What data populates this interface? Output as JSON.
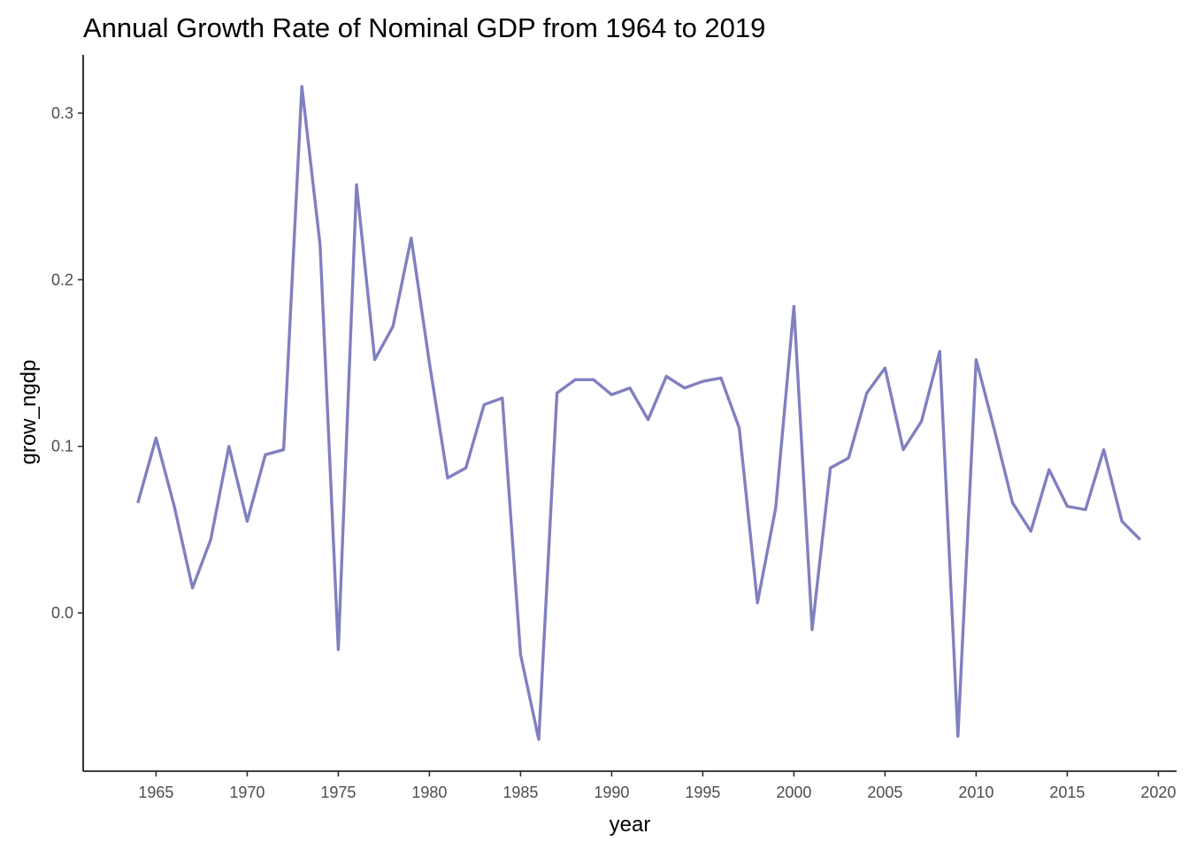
{
  "chart_data": {
    "type": "line",
    "title": "Annual Growth Rate of Nominal GDP from 1964 to 2019",
    "xlabel": "year",
    "ylabel": "grow_ngdp",
    "line_color": "#8080c0",
    "grid": false,
    "xlim": [
      1961,
      2021
    ],
    "ylim": [
      -0.095,
      0.335
    ],
    "x_ticks": [
      1965,
      1970,
      1975,
      1980,
      1985,
      1990,
      1995,
      2000,
      2005,
      2010,
      2015,
      2020
    ],
    "x_tick_labels": [
      "1965",
      "1970",
      "1975",
      "1980",
      "1985",
      "1990",
      "1995",
      "2000",
      "2005",
      "2010",
      "2015",
      "2020"
    ],
    "y_ticks": [
      0.0,
      0.1,
      0.2,
      0.3
    ],
    "y_tick_labels": [
      "0.0",
      "0.1",
      "0.2",
      "0.3"
    ],
    "x": [
      1964,
      1965,
      1966,
      1967,
      1968,
      1969,
      1970,
      1971,
      1972,
      1973,
      1974,
      1975,
      1976,
      1977,
      1978,
      1979,
      1980,
      1981,
      1982,
      1983,
      1984,
      1985,
      1986,
      1987,
      1988,
      1989,
      1990,
      1991,
      1992,
      1993,
      1994,
      1995,
      1996,
      1997,
      1998,
      1999,
      2000,
      2001,
      2002,
      2003,
      2004,
      2005,
      2006,
      2007,
      2008,
      2009,
      2010,
      2011,
      2012,
      2013,
      2014,
      2015,
      2016,
      2017,
      2018,
      2019
    ],
    "series": [
      {
        "name": "grow_ngdp",
        "values": [
          0.066,
          0.105,
          0.064,
          0.015,
          0.044,
          0.1,
          0.055,
          0.095,
          0.098,
          0.316,
          0.221,
          -0.022,
          0.257,
          0.152,
          0.172,
          0.225,
          0.15,
          0.081,
          0.087,
          0.125,
          0.129,
          -0.025,
          -0.076,
          0.132,
          0.14,
          0.14,
          0.131,
          0.135,
          0.116,
          0.142,
          0.135,
          0.139,
          0.141,
          0.111,
          0.006,
          0.063,
          0.184,
          -0.01,
          0.087,
          0.093,
          0.132,
          0.147,
          0.098,
          0.115,
          0.157,
          -0.074,
          0.152,
          0.11,
          0.066,
          0.049,
          0.086,
          0.064,
          0.062,
          0.098,
          0.055,
          0.044
        ]
      }
    ]
  }
}
